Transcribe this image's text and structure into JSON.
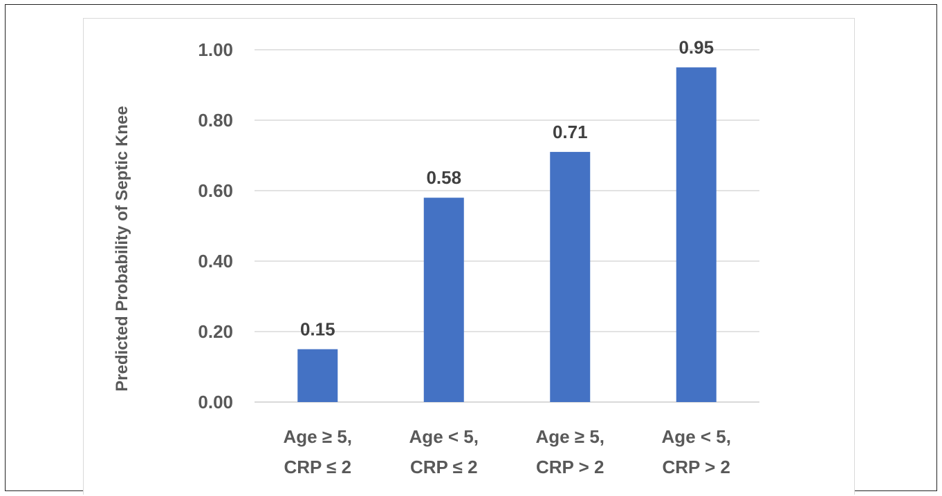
{
  "chart_data": {
    "type": "bar",
    "categories": [
      [
        "Age ≥ 5,",
        "CRP ≤ 2"
      ],
      [
        "Age < 5,",
        "CRP ≤ 2"
      ],
      [
        "Age ≥ 5,",
        "CRP > 2"
      ],
      [
        "Age < 5,",
        "CRP > 2"
      ]
    ],
    "values": [
      0.15,
      0.58,
      0.71,
      0.95
    ],
    "data_labels": [
      "0.15",
      "0.58",
      "0.71",
      "0.95"
    ],
    "title": "",
    "xlabel": "",
    "ylabel": "Predicted Probability of Septic Knee",
    "ylim": [
      0,
      1.0
    ],
    "yticks": [
      0.0,
      0.2,
      0.4,
      0.6,
      0.8,
      1.0
    ],
    "ytick_labels": [
      "0.00",
      "0.20",
      "0.40",
      "0.60",
      "0.80",
      "1.00"
    ],
    "grid": true,
    "legend": "none",
    "colors": {
      "bar": "#4472C4",
      "grid": "#d9d9d9",
      "tick_text": "#595959",
      "label_text": "#404040"
    }
  }
}
